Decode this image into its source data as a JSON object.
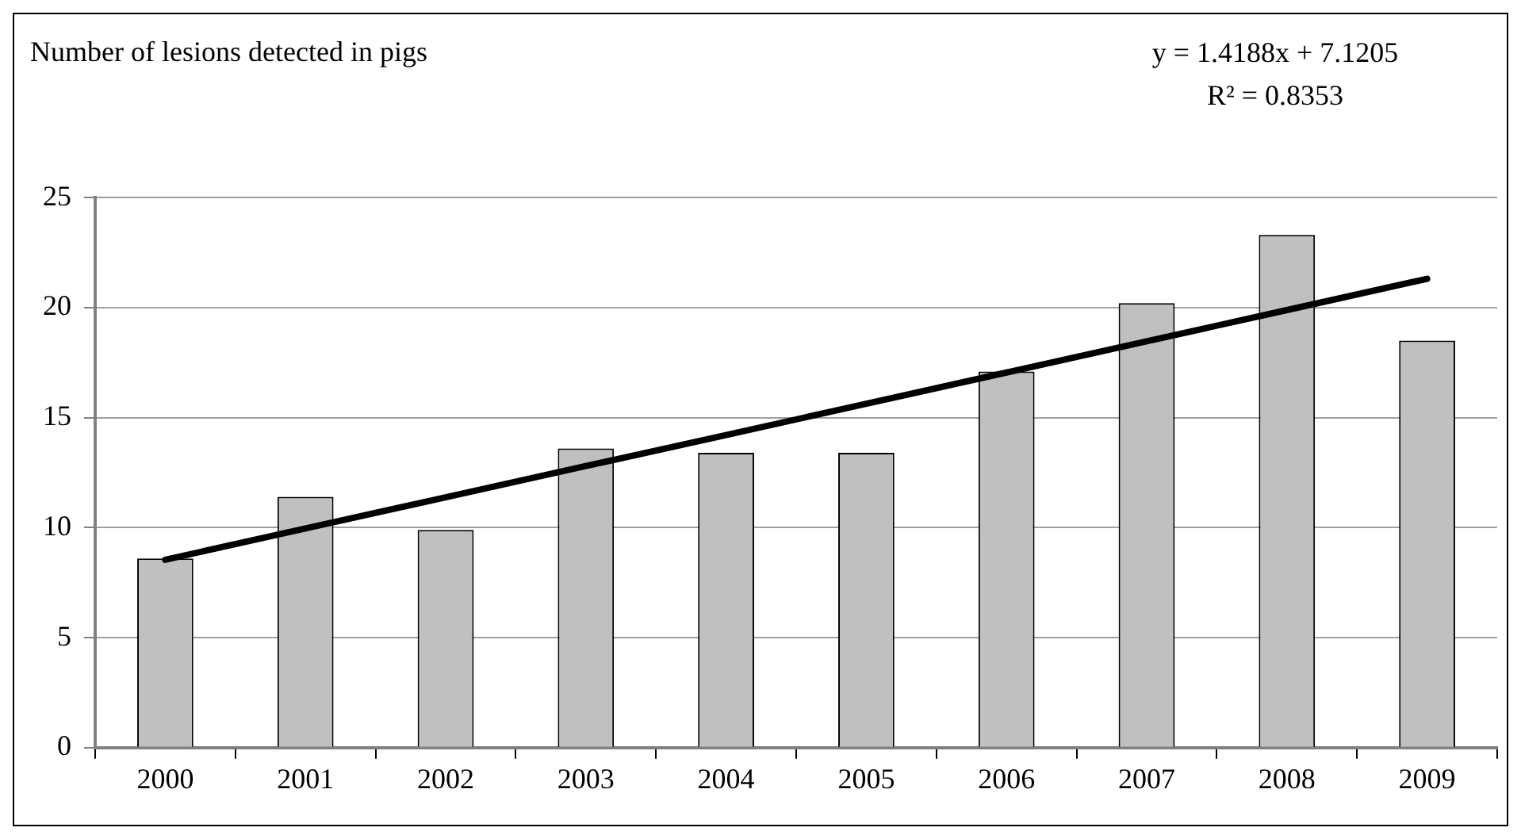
{
  "chart_data": {
    "type": "bar",
    "title": "Number of lesions detected in pigs",
    "annotations": [
      "y = 1.4188x + 7.1205",
      "R² = 0.8353"
    ],
    "categories": [
      "2000",
      "2001",
      "2002",
      "2003",
      "2004",
      "2005",
      "2006",
      "2007",
      "2008",
      "2009"
    ],
    "series": [
      {
        "color": "#c0c0c0",
        "values": [
          8.6,
          11.4,
          9.9,
          13.6,
          13.4,
          13.4,
          17.1,
          20.2,
          23.3,
          18.5
        ]
      },
      {
        "type": "line",
        "color": "#000000",
        "marker": "none",
        "line_style": "solid",
        "values": [
          8.54,
          9.96,
          11.38,
          12.8,
          14.21,
          15.63,
          17.05,
          18.47,
          19.89,
          21.31
        ]
      }
    ],
    "ylim": [
      0,
      25
    ],
    "yticks": [
      0,
      5,
      10,
      15,
      20,
      25
    ],
    "grid": "y",
    "legend": false
  }
}
